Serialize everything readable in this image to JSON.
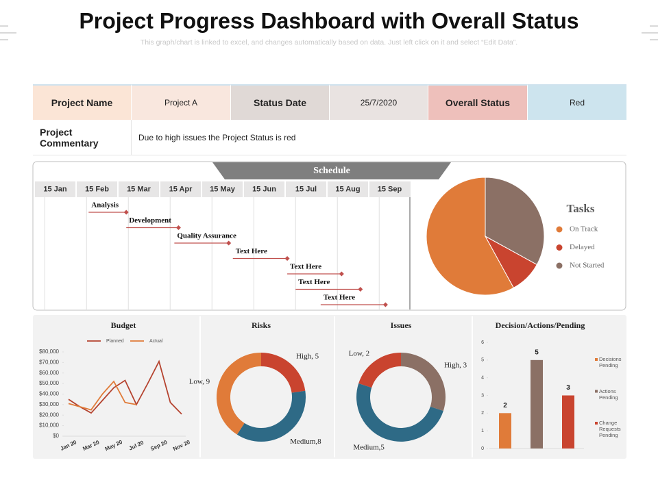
{
  "header": {
    "title": "Project Progress Dashboard with Overall Status",
    "subtitle": "This graph/chart is linked to excel, and changes automatically based on data. Just left click on it and select “Edit Data”."
  },
  "project": {
    "name_label": "Project Name",
    "name": "Project A",
    "date_label": "Status Date",
    "date": "25/7/2020",
    "status_label": "Overall Status",
    "status": "Red",
    "commentary_label": "Project Commentary",
    "commentary": "Due to high issues the Project Status is red"
  },
  "chart_data": [
    {
      "type": "gantt",
      "title": "Schedule",
      "categories": [
        "15 Jan",
        "15 Feb",
        "15 Mar",
        "15 Apr",
        "15 May",
        "15 Jun",
        "15 Jul",
        "15 Aug",
        "15 Sep"
      ],
      "xlim": [
        0,
        9
      ],
      "color": "#c0504d",
      "tasks": [
        {
          "name": "Analysis",
          "start": 1.3,
          "end": 2.2
        },
        {
          "name": "Development",
          "start": 2.2,
          "end": 3.45
        },
        {
          "name": "Quality Assurance",
          "start": 3.35,
          "end": 4.65
        },
        {
          "name": "Text Here",
          "start": 4.75,
          "end": 6.05
        },
        {
          "name": "Text Here",
          "start": 6.05,
          "end": 7.35
        },
        {
          "name": "Text Here",
          "start": 6.25,
          "end": 7.8
        },
        {
          "name": "Text Here",
          "start": 6.85,
          "end": 8.4
        }
      ]
    },
    {
      "type": "pie",
      "title": "Tasks",
      "categories": [
        "On Track",
        "Delayed",
        "Not Started"
      ],
      "values": [
        58,
        9,
        33
      ],
      "colors": [
        "#e07b39",
        "#c9442f",
        "#8b7065"
      ]
    },
    {
      "type": "line",
      "title": "Budget",
      "categories": [
        "Jan 20",
        null,
        "Mar 20",
        null,
        "May 20",
        null,
        "Jul 20",
        null,
        "Sep 20",
        null,
        "Nov 20"
      ],
      "series": [
        {
          "name": "Planned",
          "color": "#b5432f",
          "values": [
            35000,
            28000,
            22000,
            34000,
            46000,
            53000,
            30000,
            50000,
            71000,
            32000,
            21000
          ]
        },
        {
          "name": "Actual",
          "color": "#e07b39",
          "values": [
            31000,
            28000,
            25000,
            40000,
            52000,
            32000,
            30000,
            null,
            null,
            null,
            null
          ]
        }
      ],
      "ylim": [
        0,
        80000
      ],
      "yticks": [
        {
          "value": 0,
          "label": "$0"
        },
        {
          "value": 10000,
          "label": "$10,000"
        },
        {
          "value": 20000,
          "label": "$20,000"
        },
        {
          "value": 30000,
          "label": "$30,000"
        },
        {
          "value": 40000,
          "label": "$40,000"
        },
        {
          "value": 50000,
          "label": "$50,000"
        },
        {
          "value": 60000,
          "label": "$60,000"
        },
        {
          "value": 70000,
          "label": "$70,000"
        },
        {
          "value": 80000,
          "label": "$80,000"
        }
      ]
    },
    {
      "type": "donut",
      "title": "Risks",
      "values": [
        5,
        8,
        9
      ],
      "value_labels": [
        "High, 5",
        "Medium,8",
        "Low, 9"
      ],
      "colors": [
        "#c9442f",
        "#2e6a86",
        "#e07b39"
      ]
    },
    {
      "type": "donut",
      "title": "Issues",
      "values": [
        3,
        5,
        2
      ],
      "value_labels": [
        "High, 3",
        "Medium,5",
        "Low, 2"
      ],
      "colors": [
        "#8b7065",
        "#2e6a86",
        "#c9442f"
      ]
    },
    {
      "type": "bar",
      "title": "Decision/Actions/Pending",
      "categories": [
        "Decisions Pending",
        "Actions Pending",
        "Change Requests Pending"
      ],
      "values": [
        2,
        5,
        3
      ],
      "colors": [
        "#e07b39",
        "#8b7065",
        "#c9442f"
      ],
      "ylim": [
        0,
        6
      ],
      "yticks": [
        0,
        1,
        2,
        3,
        4,
        5,
        6
      ]
    }
  ]
}
